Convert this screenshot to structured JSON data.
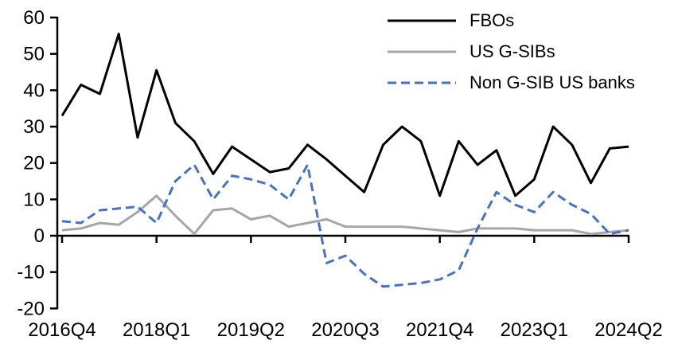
{
  "chart_data": {
    "type": "line",
    "title": "",
    "categories": [
      "2016Q4",
      "2017Q1",
      "2017Q2",
      "2017Q3",
      "2017Q4",
      "2018Q1",
      "2018Q2",
      "2018Q3",
      "2018Q4",
      "2019Q1",
      "2019Q2",
      "2019Q3",
      "2019Q4",
      "2020Q1",
      "2020Q2",
      "2020Q3",
      "2020Q4",
      "2021Q1",
      "2021Q2",
      "2021Q3",
      "2021Q4",
      "2022Q1",
      "2022Q2",
      "2022Q3",
      "2022Q4",
      "2023Q1",
      "2023Q2",
      "2023Q3",
      "2023Q4",
      "2024Q1",
      "2024Q2"
    ],
    "x_tick_labels": [
      "2016Q4",
      "2018Q1",
      "2019Q2",
      "2020Q3",
      "2021Q4",
      "2023Q1",
      "2024Q2"
    ],
    "x_tick_indices": [
      0,
      5,
      10,
      15,
      20,
      25,
      30
    ],
    "y_ticks": [
      60,
      50,
      40,
      30,
      20,
      10,
      0,
      -10,
      -20
    ],
    "ylim": [
      -20,
      60
    ],
    "grid": false,
    "legend_position": "top-right",
    "series": [
      {
        "name": "FBOs",
        "color": "#000000",
        "line_style": "solid",
        "values": [
          33,
          41.5,
          39,
          55.5,
          27,
          45.5,
          31,
          26,
          17,
          24.5,
          21,
          17.5,
          18.5,
          25,
          21,
          16.5,
          12,
          25,
          30,
          26,
          11,
          26,
          19.5,
          23.5,
          11,
          15.5,
          30,
          25,
          14.5,
          24,
          24.5
        ]
      },
      {
        "name": "US G-SIBs",
        "color": "#A6A6A6",
        "line_style": "solid",
        "values": [
          1.5,
          2,
          3.5,
          3,
          6.5,
          11,
          5.5,
          0.5,
          7,
          7.5,
          4.5,
          5.5,
          2.5,
          3.5,
          4.5,
          2.5,
          2.5,
          2.5,
          2.5,
          2,
          1.5,
          1,
          2,
          2,
          2,
          1.5,
          1.5,
          1.5,
          0.5,
          1,
          1.5
        ]
      },
      {
        "name": "Non G-SIB US banks",
        "color": "#4472C4",
        "line_style": "dashed",
        "values": [
          4,
          3.5,
          7,
          7.5,
          8,
          3.5,
          15,
          19.5,
          10,
          16.5,
          15.5,
          14,
          10,
          19.5,
          -7.5,
          -5.5,
          -10.5,
          -14,
          -13.5,
          -13,
          -12,
          -9.5,
          2,
          12,
          8.5,
          6.5,
          12,
          8.5,
          6,
          0.5,
          1.5
        ]
      }
    ]
  }
}
